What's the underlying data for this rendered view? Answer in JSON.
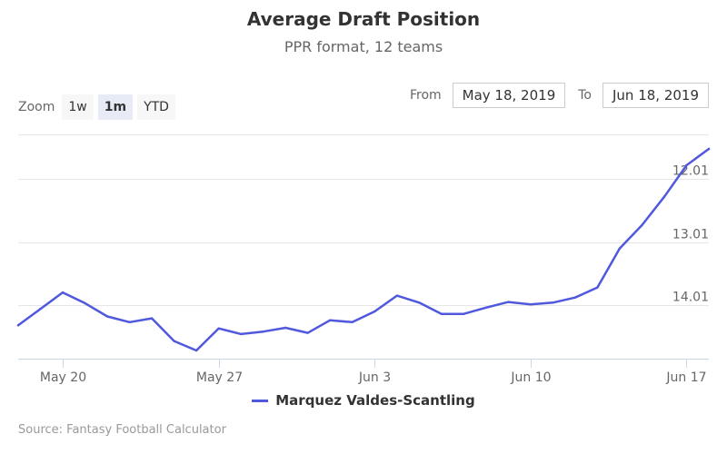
{
  "title": "Average Draft Position",
  "subtitle": "PPR format, 12 teams",
  "zoom": {
    "label": "Zoom",
    "buttons": [
      {
        "label": "1w",
        "active": false
      },
      {
        "label": "1m",
        "active": true
      },
      {
        "label": "YTD",
        "active": false
      }
    ]
  },
  "range": {
    "from_label": "From",
    "from_value": "May 18, 2019",
    "to_label": "To",
    "to_value": "Jun 18, 2019"
  },
  "credits": "Source: Fantasy Football Calculator",
  "colors": {
    "series": "#5058dd",
    "grid": "#e6e6e6",
    "axis_line": "#ccd6eb",
    "axis_text": "#666666"
  },
  "chart_data": {
    "type": "line",
    "title": "Average Draft Position",
    "subtitle": "PPR format, 12 teams",
    "y_reversed": true,
    "ylim": [
      11.3,
      14.86
    ],
    "y_ticks": [
      12.01,
      13.01,
      14.01
    ],
    "y_tick_labels": [
      "12.01",
      "13.01",
      "14.01"
    ],
    "xlim": [
      "2019-05-18",
      "2019-06-18"
    ],
    "x_ticks": [
      "2019-05-20",
      "2019-05-27",
      "2019-06-03",
      "2019-06-10",
      "2019-06-17"
    ],
    "x_tick_labels": [
      "May 20",
      "May 27",
      "Jun 3",
      "Jun 10",
      "Jun 17"
    ],
    "grid": true,
    "legend_position": "bottom-center",
    "x": [
      "2019-05-18",
      "2019-05-19",
      "2019-05-20",
      "2019-05-21",
      "2019-05-22",
      "2019-05-23",
      "2019-05-24",
      "2019-05-25",
      "2019-05-26",
      "2019-05-27",
      "2019-05-28",
      "2019-05-29",
      "2019-05-30",
      "2019-05-31",
      "2019-06-01",
      "2019-06-02",
      "2019-06-03",
      "2019-06-04",
      "2019-06-05",
      "2019-06-06",
      "2019-06-07",
      "2019-06-08",
      "2019-06-09",
      "2019-06-10",
      "2019-06-11",
      "2019-06-12",
      "2019-06-13",
      "2019-06-14",
      "2019-06-15",
      "2019-06-16",
      "2019-06-17",
      "2019-06-18"
    ],
    "series": [
      {
        "name": "Marquez Valdes-Scantling",
        "values": [
          14.33,
          14.07,
          13.81,
          13.98,
          14.19,
          14.28,
          14.22,
          14.58,
          14.73,
          14.38,
          14.47,
          14.43,
          14.37,
          14.45,
          14.25,
          14.28,
          14.11,
          13.86,
          13.97,
          14.15,
          14.15,
          14.05,
          13.96,
          14.0,
          13.97,
          13.89,
          13.73,
          13.11,
          12.74,
          12.29,
          11.79,
          11.53
        ]
      }
    ]
  }
}
